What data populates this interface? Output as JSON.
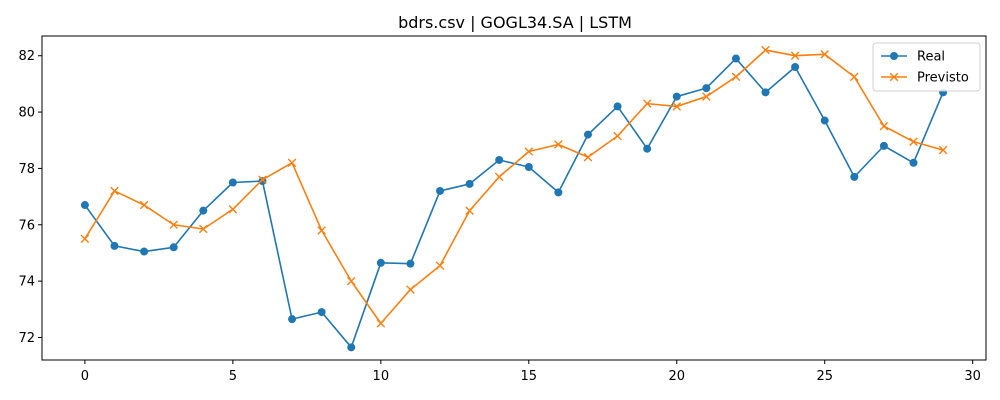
{
  "chart_data": {
    "type": "line",
    "title": "bdrs.csv | GOGL34.SA | LSTM",
    "xlabel": "",
    "ylabel": "",
    "xlim": [
      -1.45,
      30.45
    ],
    "ylim": [
      71.2,
      82.7
    ],
    "xticks": [
      "0",
      "5",
      "10",
      "15",
      "20",
      "25",
      "30"
    ],
    "yticks": [
      "72",
      "74",
      "76",
      "78",
      "80",
      "82"
    ],
    "grid": false,
    "legend_position": "top-right",
    "x": [
      0,
      1,
      2,
      3,
      4,
      5,
      6,
      7,
      8,
      9,
      10,
      11,
      12,
      13,
      14,
      15,
      16,
      17,
      18,
      19,
      20,
      21,
      22,
      23,
      24,
      25,
      26,
      27,
      28,
      29
    ],
    "series": [
      {
        "name": "Real",
        "color": "#1f77b4",
        "marker": "circle",
        "values": [
          76.7,
          75.25,
          75.05,
          75.2,
          76.5,
          77.5,
          77.55,
          72.65,
          72.9,
          71.65,
          74.65,
          74.62,
          77.2,
          77.45,
          78.3,
          78.05,
          77.15,
          79.2,
          80.2,
          78.7,
          80.55,
          80.85,
          81.9,
          80.7,
          81.6,
          79.7,
          77.7,
          78.8,
          78.2,
          80.7
        ]
      },
      {
        "name": "Previsto",
        "color": "#ff7f0e",
        "marker": "x",
        "values": [
          75.5,
          77.2,
          76.7,
          76.0,
          75.85,
          76.55,
          77.6,
          78.2,
          75.8,
          74.0,
          72.5,
          73.7,
          74.55,
          76.5,
          77.7,
          78.6,
          78.85,
          78.4,
          79.15,
          80.3,
          80.2,
          80.55,
          81.25,
          82.2,
          82.0,
          82.05,
          81.25,
          79.5,
          78.95,
          78.65
        ]
      }
    ]
  }
}
